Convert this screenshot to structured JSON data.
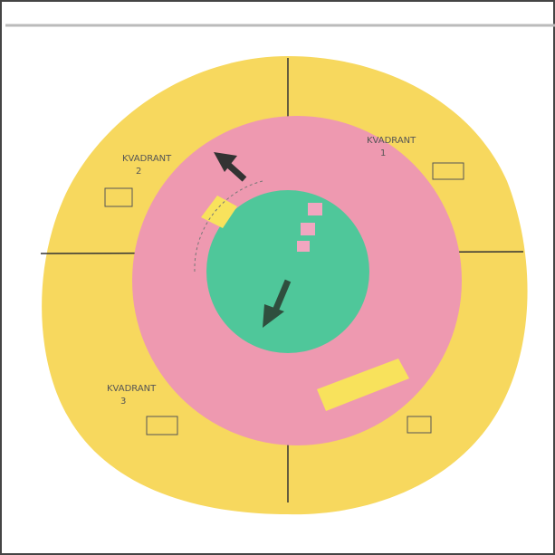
{
  "labels": [
    {
      "text": "KVADRANT",
      "number": "2"
    },
    {
      "text": "KVADRANT",
      "number": "1"
    },
    {
      "text": "KVADRANT",
      "number": "3"
    }
  ]
}
